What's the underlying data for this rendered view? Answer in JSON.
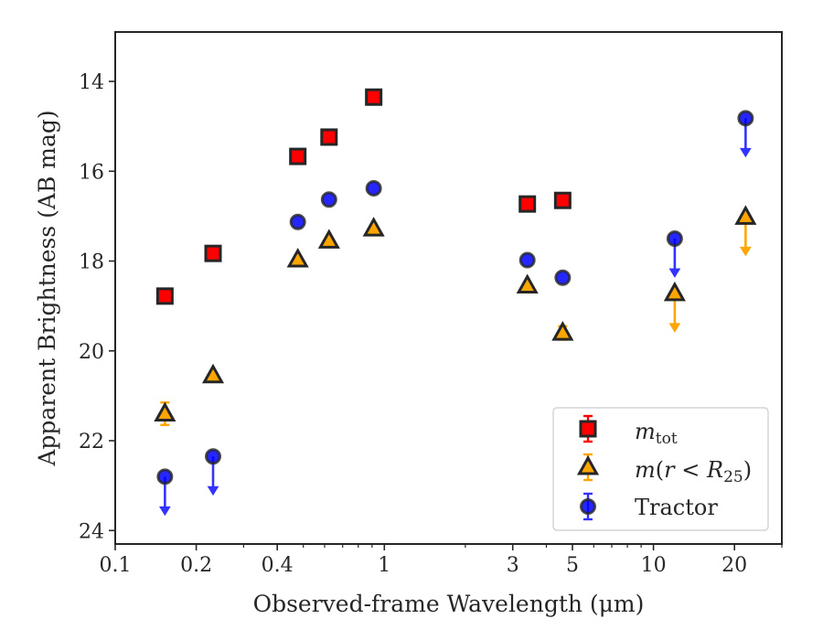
{
  "chart_data": {
    "type": "scatter",
    "xlabel": "Observed-frame Wavelength (μm)",
    "ylabel": "Apparent Brightness (AB mag)",
    "x_scale": "log",
    "xlim": [
      0.1,
      30
    ],
    "ylim": [
      24.3,
      12.9
    ],
    "y_inverted": true,
    "grid": false,
    "legend_position": "lower-right",
    "x_ticks": [
      {
        "value": 0.1,
        "label": "0.1"
      },
      {
        "value": 0.2,
        "label": "0.2"
      },
      {
        "value": 0.4,
        "label": "0.4"
      },
      {
        "value": 1,
        "label": "1"
      },
      {
        "value": 3,
        "label": "3"
      },
      {
        "value": 5,
        "label": "5"
      },
      {
        "value": 10,
        "label": "10"
      },
      {
        "value": 20,
        "label": "20"
      }
    ],
    "y_ticks": [
      {
        "value": 14,
        "label": "14"
      },
      {
        "value": 16,
        "label": "16"
      },
      {
        "value": 18,
        "label": "18"
      },
      {
        "value": 20,
        "label": "20"
      },
      {
        "value": 22,
        "label": "22"
      },
      {
        "value": 24,
        "label": "24"
      }
    ],
    "series": [
      {
        "legend_main": "m",
        "legend_sub": "tot",
        "marker": "square",
        "color": "#ff0000",
        "edge_color": "#262626",
        "points": [
          {
            "x": 0.153,
            "y": 18.78
          },
          {
            "x": 0.231,
            "y": 17.83
          },
          {
            "x": 0.477,
            "y": 15.67
          },
          {
            "x": 0.623,
            "y": 15.24
          },
          {
            "x": 0.913,
            "y": 14.35
          },
          {
            "x": 3.4,
            "y": 16.73
          },
          {
            "x": 4.6,
            "y": 16.65
          }
        ]
      },
      {
        "legend_main": "m",
        "legend_open": "(",
        "legend_mid": "r",
        "legend_lt": " < ",
        "legend_R": "R",
        "legend_sub": "25",
        "legend_close": ")",
        "marker": "triangle",
        "color": "#ffa500",
        "edge_color": "#262626",
        "points": [
          {
            "x": 0.153,
            "y": 21.4,
            "err": 0.25
          },
          {
            "x": 0.231,
            "y": 20.55
          },
          {
            "x": 0.477,
            "y": 17.97
          },
          {
            "x": 0.623,
            "y": 17.55
          },
          {
            "x": 0.913,
            "y": 17.28
          },
          {
            "x": 3.4,
            "y": 18.55
          },
          {
            "x": 4.6,
            "y": 19.6,
            "err": 0.15
          },
          {
            "x": 12.0,
            "y": 18.72,
            "upper_limit": true
          },
          {
            "x": 22.0,
            "y": 17.02,
            "upper_limit": true
          }
        ]
      },
      {
        "legend_main": "Tractor",
        "marker": "circle",
        "color": "#0000ff",
        "edge_color": "#262626",
        "points": [
          {
            "x": 0.153,
            "y": 22.8,
            "upper_limit": true
          },
          {
            "x": 0.231,
            "y": 22.35,
            "upper_limit": true
          },
          {
            "x": 0.477,
            "y": 17.13
          },
          {
            "x": 0.623,
            "y": 16.63
          },
          {
            "x": 0.913,
            "y": 16.38
          },
          {
            "x": 3.4,
            "y": 17.98
          },
          {
            "x": 4.6,
            "y": 18.37
          },
          {
            "x": 12.0,
            "y": 17.5,
            "upper_limit": true
          },
          {
            "x": 22.0,
            "y": 14.82,
            "upper_limit": true
          }
        ]
      }
    ]
  }
}
